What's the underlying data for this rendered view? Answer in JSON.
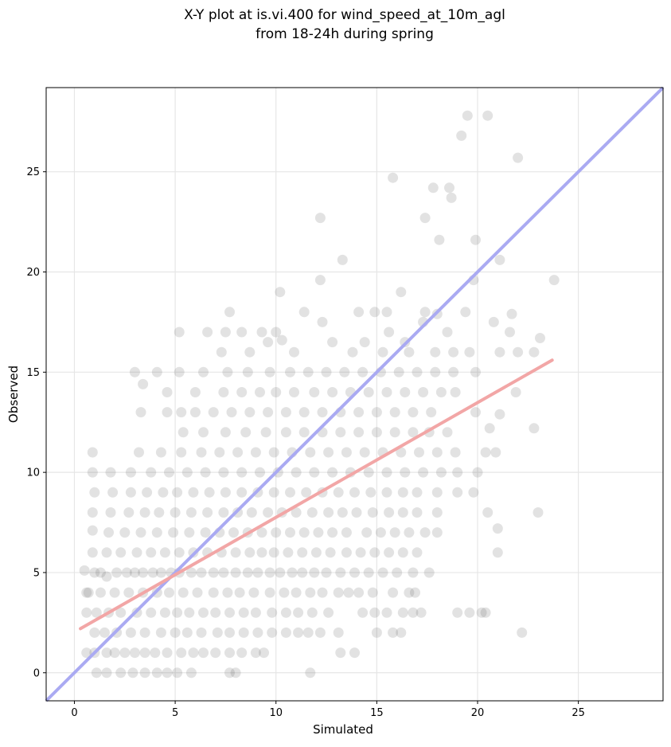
{
  "chart_data": {
    "type": "scatter",
    "title": "X-Y plot at is.vi.400 for wind_speed_at_10m_agl",
    "subtitle": "from 18-24h during spring",
    "xlabel": "Simulated",
    "ylabel": "Observed",
    "xlim": [
      -1.4,
      29.2
    ],
    "ylim": [
      -1.4,
      29.2
    ],
    "xticks": [
      0,
      5,
      10,
      15,
      20,
      25
    ],
    "yticks": [
      0,
      5,
      10,
      15,
      20,
      25
    ],
    "xtick_labels": [
      "0",
      "5",
      "10",
      "15",
      "20",
      "25"
    ],
    "ytick_labels": [
      "0",
      "5",
      "10",
      "15",
      "20",
      "25"
    ],
    "grid": true,
    "colors": {
      "points": "#555555",
      "one_to_one_line": "#aaaaf2",
      "fit_line": "#f2a6a6"
    },
    "one_to_one_line": {
      "x": [
        -1.4,
        29.2
      ],
      "y": [
        -1.4,
        29.2
      ]
    },
    "fit_line": {
      "x": [
        0.3,
        23.7
      ],
      "y": [
        2.2,
        15.6
      ]
    },
    "points": [
      [
        0.5,
        5.1
      ],
      [
        0.7,
        4.0
      ],
      [
        1.0,
        5.0
      ],
      [
        1.3,
        5.0
      ],
      [
        1.6,
        4.8
      ],
      [
        2.1,
        5.0
      ],
      [
        2.6,
        5.0
      ],
      [
        3.0,
        5.0
      ],
      [
        3.4,
        5.0
      ],
      [
        3.9,
        5.0
      ],
      [
        4.3,
        5.0
      ],
      [
        4.8,
        5.0
      ],
      [
        5.2,
        5.0
      ],
      [
        5.8,
        5.0
      ],
      [
        6.3,
        5.0
      ],
      [
        6.9,
        5.0
      ],
      [
        7.4,
        5.0
      ],
      [
        8.0,
        5.0
      ],
      [
        8.6,
        5.0
      ],
      [
        9.1,
        5.0
      ],
      [
        9.7,
        5.0
      ],
      [
        10.2,
        5.0
      ],
      [
        10.8,
        5.0
      ],
      [
        11.3,
        5.0
      ],
      [
        11.9,
        5.0
      ],
      [
        12.5,
        5.0
      ],
      [
        13.2,
        5.0
      ],
      [
        13.9,
        5.0
      ],
      [
        14.6,
        5.0
      ],
      [
        15.3,
        5.0
      ],
      [
        16.0,
        5.0
      ],
      [
        16.8,
        5.0
      ],
      [
        17.6,
        5.0
      ],
      [
        0.6,
        3.0
      ],
      [
        1.1,
        3.0
      ],
      [
        1.7,
        3.0
      ],
      [
        2.3,
        3.0
      ],
      [
        3.1,
        3.0
      ],
      [
        3.8,
        3.0
      ],
      [
        4.5,
        3.0
      ],
      [
        5.1,
        3.0
      ],
      [
        5.7,
        3.0
      ],
      [
        6.4,
        3.0
      ],
      [
        7.0,
        3.0
      ],
      [
        7.7,
        3.0
      ],
      [
        8.4,
        3.0
      ],
      [
        9.0,
        3.0
      ],
      [
        9.8,
        3.0
      ],
      [
        10.5,
        3.0
      ],
      [
        11.1,
        3.0
      ],
      [
        11.8,
        3.0
      ],
      [
        12.6,
        3.0
      ],
      [
        14.3,
        3.0
      ],
      [
        14.9,
        3.0
      ],
      [
        15.5,
        3.0
      ],
      [
        16.3,
        3.0
      ],
      [
        16.8,
        3.0
      ],
      [
        17.2,
        3.0
      ],
      [
        19.0,
        3.0
      ],
      [
        19.6,
        3.0
      ],
      [
        20.2,
        3.0
      ],
      [
        20.4,
        3.0
      ],
      [
        0.6,
        4.0
      ],
      [
        1.3,
        4.0
      ],
      [
        2.0,
        4.0
      ],
      [
        2.7,
        4.0
      ],
      [
        3.4,
        4.0
      ],
      [
        4.1,
        4.0
      ],
      [
        4.7,
        4.0
      ],
      [
        5.4,
        4.0
      ],
      [
        6.1,
        4.0
      ],
      [
        6.9,
        4.0
      ],
      [
        7.6,
        4.0
      ],
      [
        8.2,
        4.0
      ],
      [
        8.9,
        4.0
      ],
      [
        9.7,
        4.0
      ],
      [
        10.4,
        4.0
      ],
      [
        11.0,
        4.0
      ],
      [
        11.7,
        4.0
      ],
      [
        12.3,
        4.0
      ],
      [
        13.1,
        4.0
      ],
      [
        13.6,
        4.0
      ],
      [
        14.1,
        4.0
      ],
      [
        14.8,
        4.0
      ],
      [
        15.8,
        4.0
      ],
      [
        16.6,
        4.0
      ],
      [
        16.9,
        4.0
      ],
      [
        0.6,
        1.0
      ],
      [
        1.0,
        1.0
      ],
      [
        1.6,
        1.0
      ],
      [
        2.0,
        1.0
      ],
      [
        2.5,
        1.0
      ],
      [
        3.0,
        1.0
      ],
      [
        3.5,
        1.0
      ],
      [
        4.0,
        1.0
      ],
      [
        4.6,
        1.0
      ],
      [
        5.3,
        1.0
      ],
      [
        5.9,
        1.0
      ],
      [
        6.4,
        1.0
      ],
      [
        7.0,
        1.0
      ],
      [
        7.7,
        1.0
      ],
      [
        8.3,
        1.0
      ],
      [
        9.0,
        1.0
      ],
      [
        9.4,
        1.0
      ],
      [
        13.2,
        1.0
      ],
      [
        13.9,
        1.0
      ],
      [
        1.1,
        0.0
      ],
      [
        1.6,
        0.0
      ],
      [
        2.3,
        0.0
      ],
      [
        2.9,
        0.0
      ],
      [
        3.5,
        0.0
      ],
      [
        4.1,
        0.0
      ],
      [
        4.6,
        0.0
      ],
      [
        5.1,
        0.0
      ],
      [
        5.8,
        0.0
      ],
      [
        7.7,
        0.0
      ],
      [
        8.0,
        0.0
      ],
      [
        11.7,
        0.0
      ],
      [
        1.0,
        2.0
      ],
      [
        1.5,
        2.0
      ],
      [
        2.1,
        2.0
      ],
      [
        2.8,
        2.0
      ],
      [
        3.5,
        2.0
      ],
      [
        4.3,
        2.0
      ],
      [
        5.0,
        2.0
      ],
      [
        5.6,
        2.0
      ],
      [
        6.3,
        2.0
      ],
      [
        7.1,
        2.0
      ],
      [
        7.7,
        2.0
      ],
      [
        8.4,
        2.0
      ],
      [
        9.1,
        2.0
      ],
      [
        9.8,
        2.0
      ],
      [
        10.5,
        2.0
      ],
      [
        11.1,
        2.0
      ],
      [
        11.6,
        2.0
      ],
      [
        12.2,
        2.0
      ],
      [
        13.1,
        2.0
      ],
      [
        15.0,
        2.0
      ],
      [
        15.8,
        2.0
      ],
      [
        16.2,
        2.0
      ],
      [
        22.2,
        2.0
      ],
      [
        0.9,
        6.0
      ],
      [
        1.6,
        6.0
      ],
      [
        2.3,
        6.0
      ],
      [
        3.1,
        6.0
      ],
      [
        3.8,
        6.0
      ],
      [
        4.5,
        6.0
      ],
      [
        5.2,
        6.0
      ],
      [
        5.9,
        6.0
      ],
      [
        6.6,
        6.0
      ],
      [
        7.3,
        6.0
      ],
      [
        8.0,
        6.0
      ],
      [
        8.7,
        6.0
      ],
      [
        9.3,
        6.0
      ],
      [
        9.9,
        6.0
      ],
      [
        10.6,
        6.0
      ],
      [
        11.3,
        6.0
      ],
      [
        12.0,
        6.0
      ],
      [
        12.7,
        6.0
      ],
      [
        13.5,
        6.0
      ],
      [
        14.2,
        6.0
      ],
      [
        14.9,
        6.0
      ],
      [
        15.6,
        6.0
      ],
      [
        16.3,
        6.0
      ],
      [
        17.0,
        6.0
      ],
      [
        21.0,
        6.0
      ],
      [
        0.9,
        7.1
      ],
      [
        1.7,
        7.0
      ],
      [
        2.5,
        7.0
      ],
      [
        3.3,
        7.0
      ],
      [
        4.1,
        7.0
      ],
      [
        4.9,
        7.0
      ],
      [
        5.7,
        7.0
      ],
      [
        6.5,
        7.0
      ],
      [
        7.2,
        7.0
      ],
      [
        7.9,
        7.0
      ],
      [
        8.6,
        7.0
      ],
      [
        9.3,
        7.0
      ],
      [
        10.0,
        7.0
      ],
      [
        10.7,
        7.0
      ],
      [
        11.4,
        7.0
      ],
      [
        12.1,
        7.0
      ],
      [
        12.8,
        7.0
      ],
      [
        13.5,
        7.0
      ],
      [
        14.5,
        7.0
      ],
      [
        15.2,
        7.0
      ],
      [
        15.9,
        7.0
      ],
      [
        16.6,
        7.0
      ],
      [
        17.4,
        7.0
      ],
      [
        18.0,
        7.0
      ],
      [
        21.0,
        7.2
      ],
      [
        0.9,
        8.0
      ],
      [
        1.8,
        8.0
      ],
      [
        2.7,
        8.0
      ],
      [
        3.5,
        8.0
      ],
      [
        4.2,
        8.0
      ],
      [
        5.0,
        8.0
      ],
      [
        5.8,
        8.0
      ],
      [
        6.6,
        8.0
      ],
      [
        7.4,
        8.0
      ],
      [
        8.1,
        8.0
      ],
      [
        8.8,
        8.0
      ],
      [
        9.6,
        8.0
      ],
      [
        10.3,
        8.0
      ],
      [
        11.0,
        8.0
      ],
      [
        11.8,
        8.0
      ],
      [
        12.6,
        8.0
      ],
      [
        13.3,
        8.0
      ],
      [
        14.0,
        8.0
      ],
      [
        14.8,
        8.0
      ],
      [
        15.6,
        8.0
      ],
      [
        16.3,
        8.0
      ],
      [
        17.0,
        8.0
      ],
      [
        18.0,
        8.0
      ],
      [
        20.5,
        8.0
      ],
      [
        23.0,
        8.0
      ],
      [
        1.0,
        9.0
      ],
      [
        1.9,
        9.0
      ],
      [
        2.8,
        9.0
      ],
      [
        3.6,
        9.0
      ],
      [
        4.4,
        9.0
      ],
      [
        5.1,
        9.0
      ],
      [
        5.9,
        9.0
      ],
      [
        6.7,
        9.0
      ],
      [
        7.5,
        9.0
      ],
      [
        8.3,
        9.0
      ],
      [
        9.1,
        9.0
      ],
      [
        9.9,
        9.0
      ],
      [
        10.7,
        9.0
      ],
      [
        11.5,
        9.0
      ],
      [
        12.3,
        9.0
      ],
      [
        13.1,
        9.0
      ],
      [
        13.9,
        9.0
      ],
      [
        14.7,
        9.0
      ],
      [
        15.5,
        9.0
      ],
      [
        16.3,
        9.0
      ],
      [
        17.0,
        9.0
      ],
      [
        18.0,
        9.0
      ],
      [
        19.0,
        9.0
      ],
      [
        19.8,
        9.0
      ],
      [
        0.9,
        10.0
      ],
      [
        1.8,
        10.0
      ],
      [
        2.8,
        10.0
      ],
      [
        3.8,
        10.0
      ],
      [
        4.7,
        10.0
      ],
      [
        5.6,
        10.0
      ],
      [
        6.5,
        10.0
      ],
      [
        7.4,
        10.0
      ],
      [
        8.3,
        10.0
      ],
      [
        9.2,
        10.0
      ],
      [
        10.1,
        10.0
      ],
      [
        11.0,
        10.0
      ],
      [
        11.9,
        10.0
      ],
      [
        12.8,
        10.0
      ],
      [
        13.7,
        10.0
      ],
      [
        14.6,
        10.0
      ],
      [
        15.5,
        10.0
      ],
      [
        16.4,
        10.0
      ],
      [
        17.3,
        10.0
      ],
      [
        18.2,
        10.0
      ],
      [
        19.0,
        10.0
      ],
      [
        20.0,
        10.0
      ],
      [
        0.9,
        11.0
      ],
      [
        3.2,
        11.0
      ],
      [
        4.3,
        11.0
      ],
      [
        5.3,
        11.0
      ],
      [
        6.3,
        11.0
      ],
      [
        7.2,
        11.0
      ],
      [
        8.1,
        11.0
      ],
      [
        9.0,
        11.0
      ],
      [
        9.9,
        11.0
      ],
      [
        10.8,
        11.0
      ],
      [
        11.7,
        11.0
      ],
      [
        12.6,
        11.0
      ],
      [
        13.5,
        11.0
      ],
      [
        14.4,
        11.0
      ],
      [
        15.3,
        11.0
      ],
      [
        16.2,
        11.0
      ],
      [
        17.1,
        11.0
      ],
      [
        18.0,
        11.0
      ],
      [
        18.9,
        11.0
      ],
      [
        20.4,
        11.0
      ],
      [
        20.9,
        11.0
      ],
      [
        5.4,
        12.0
      ],
      [
        6.4,
        12.0
      ],
      [
        7.5,
        12.0
      ],
      [
        8.5,
        12.0
      ],
      [
        9.5,
        12.0
      ],
      [
        10.5,
        12.0
      ],
      [
        11.4,
        12.0
      ],
      [
        12.3,
        12.0
      ],
      [
        13.2,
        12.0
      ],
      [
        14.1,
        12.0
      ],
      [
        15.0,
        12.0
      ],
      [
        15.9,
        12.0
      ],
      [
        16.8,
        12.0
      ],
      [
        17.6,
        12.0
      ],
      [
        18.5,
        12.0
      ],
      [
        20.6,
        12.2
      ],
      [
        22.8,
        12.2
      ],
      [
        3.3,
        13.0
      ],
      [
        4.6,
        13.0
      ],
      [
        5.3,
        13.0
      ],
      [
        6.0,
        13.0
      ],
      [
        6.9,
        13.0
      ],
      [
        7.8,
        13.0
      ],
      [
        8.7,
        13.0
      ],
      [
        9.6,
        13.0
      ],
      [
        10.5,
        13.0
      ],
      [
        11.4,
        13.0
      ],
      [
        12.3,
        13.0
      ],
      [
        13.2,
        13.0
      ],
      [
        14.1,
        13.0
      ],
      [
        15.0,
        13.0
      ],
      [
        15.9,
        13.0
      ],
      [
        16.8,
        13.0
      ],
      [
        17.7,
        13.0
      ],
      [
        19.9,
        13.0
      ],
      [
        21.1,
        12.9
      ],
      [
        4.6,
        14.0
      ],
      [
        6.0,
        14.0
      ],
      [
        7.4,
        14.0
      ],
      [
        8.3,
        14.0
      ],
      [
        9.2,
        14.0
      ],
      [
        10.0,
        14.0
      ],
      [
        10.9,
        14.0
      ],
      [
        11.9,
        14.0
      ],
      [
        12.8,
        14.0
      ],
      [
        13.7,
        14.0
      ],
      [
        14.6,
        14.0
      ],
      [
        15.5,
        14.0
      ],
      [
        16.4,
        14.0
      ],
      [
        17.3,
        14.0
      ],
      [
        18.2,
        14.0
      ],
      [
        18.9,
        14.0
      ],
      [
        21.9,
        14.0
      ],
      [
        3.4,
        14.4
      ],
      [
        3.0,
        15.0
      ],
      [
        4.1,
        15.0
      ],
      [
        5.2,
        15.0
      ],
      [
        6.4,
        15.0
      ],
      [
        7.6,
        15.0
      ],
      [
        8.6,
        15.0
      ],
      [
        9.7,
        15.0
      ],
      [
        10.7,
        15.0
      ],
      [
        11.6,
        15.0
      ],
      [
        12.5,
        15.0
      ],
      [
        13.4,
        15.0
      ],
      [
        14.3,
        15.0
      ],
      [
        15.2,
        15.0
      ],
      [
        16.1,
        15.0
      ],
      [
        17.0,
        15.0
      ],
      [
        17.9,
        15.0
      ],
      [
        18.8,
        15.0
      ],
      [
        19.9,
        15.0
      ],
      [
        8.7,
        16.0
      ],
      [
        10.9,
        16.0
      ],
      [
        13.8,
        16.0
      ],
      [
        15.3,
        16.0
      ],
      [
        16.6,
        16.0
      ],
      [
        17.9,
        16.0
      ],
      [
        18.8,
        16.0
      ],
      [
        19.6,
        16.0
      ],
      [
        21.1,
        16.0
      ],
      [
        22.0,
        16.0
      ],
      [
        22.8,
        16.0
      ],
      [
        7.3,
        16.0
      ],
      [
        9.6,
        16.5
      ],
      [
        12.8,
        16.5
      ],
      [
        14.4,
        16.5
      ],
      [
        16.4,
        16.5
      ],
      [
        5.2,
        17.0
      ],
      [
        6.6,
        17.0
      ],
      [
        7.5,
        17.0
      ],
      [
        8.3,
        17.0
      ],
      [
        9.3,
        17.0
      ],
      [
        10.0,
        17.0
      ],
      [
        10.3,
        16.6
      ],
      [
        12.3,
        17.5
      ],
      [
        15.6,
        17.0
      ],
      [
        17.3,
        17.5
      ],
      [
        18.5,
        17.0
      ],
      [
        20.8,
        17.5
      ],
      [
        21.6,
        17.0
      ],
      [
        23.1,
        16.7
      ],
      [
        7.7,
        18.0
      ],
      [
        11.4,
        18.0
      ],
      [
        14.1,
        18.0
      ],
      [
        14.9,
        18.0
      ],
      [
        15.5,
        18.0
      ],
      [
        17.4,
        18.0
      ],
      [
        18.0,
        17.9
      ],
      [
        19.4,
        18.0
      ],
      [
        21.7,
        17.9
      ],
      [
        10.2,
        19.0
      ],
      [
        12.2,
        19.6
      ],
      [
        16.2,
        19.0
      ],
      [
        19.8,
        19.6
      ],
      [
        23.8,
        19.6
      ],
      [
        13.3,
        20.6
      ],
      [
        21.1,
        20.6
      ],
      [
        18.1,
        21.6
      ],
      [
        19.9,
        21.6
      ],
      [
        12.2,
        22.7
      ],
      [
        17.4,
        22.7
      ],
      [
        18.7,
        23.7
      ],
      [
        17.8,
        24.2
      ],
      [
        18.6,
        24.2
      ],
      [
        15.8,
        24.7
      ],
      [
        22.0,
        25.7
      ],
      [
        19.2,
        26.8
      ],
      [
        19.5,
        27.8
      ],
      [
        20.5,
        27.8
      ]
    ]
  }
}
